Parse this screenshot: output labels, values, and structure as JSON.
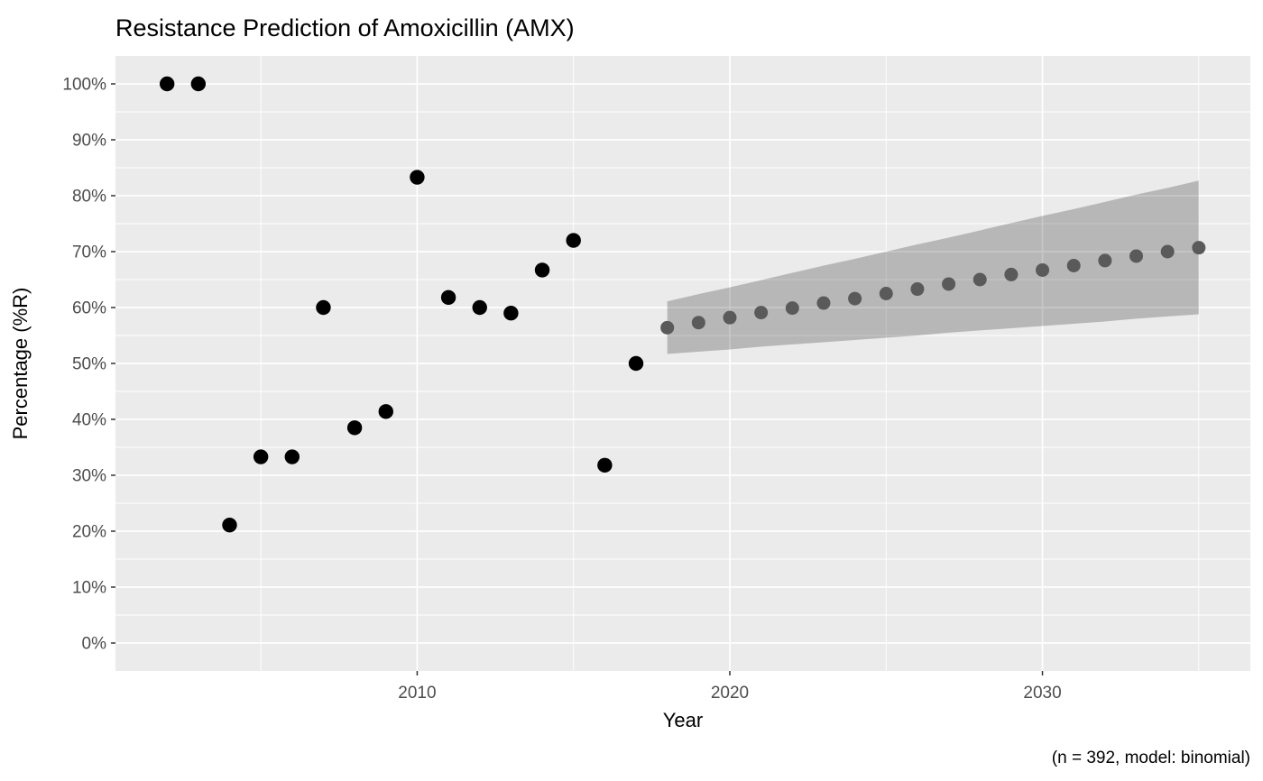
{
  "chart_data": {
    "type": "scatter",
    "title": "Resistance Prediction of Amoxicillin (AMX)",
    "xlabel": "Year",
    "ylabel": "Percentage (%R)",
    "caption": "(n = 392, model: binomial)",
    "grid": true,
    "legend_position": "none",
    "xlim": [
      2000.35,
      2036.65
    ],
    "ylim_percent": [
      -5,
      105
    ],
    "x_ticks": [
      {
        "value": 2010,
        "label": "2010"
      },
      {
        "value": 2020,
        "label": "2020"
      },
      {
        "value": 2030,
        "label": "2030"
      }
    ],
    "x_minor_ticks": [
      2005,
      2015,
      2025,
      2035
    ],
    "y_ticks": [
      {
        "value": 0,
        "label": "0%"
      },
      {
        "value": 10,
        "label": "10%"
      },
      {
        "value": 20,
        "label": "20%"
      },
      {
        "value": 30,
        "label": "30%"
      },
      {
        "value": 40,
        "label": "40%"
      },
      {
        "value": 50,
        "label": "50%"
      },
      {
        "value": 60,
        "label": "60%"
      },
      {
        "value": 70,
        "label": "70%"
      },
      {
        "value": 80,
        "label": "80%"
      },
      {
        "value": 90,
        "label": "90%"
      },
      {
        "value": 100,
        "label": "100%"
      }
    ],
    "y_minor_ticks": [
      5,
      15,
      25,
      35,
      45,
      55,
      65,
      75,
      85,
      95
    ],
    "series": [
      {
        "name": "observed",
        "point_color": "#000000",
        "point_radius": 8.2,
        "x": [
          2002,
          2003,
          2004,
          2005,
          2006,
          2007,
          2008,
          2009,
          2010,
          2011,
          2012,
          2013,
          2014,
          2015,
          2016,
          2017
        ],
        "y": [
          100,
          100,
          21.1,
          33.3,
          33.3,
          60.0,
          38.5,
          41.4,
          83.3,
          61.8,
          60.0,
          59.0,
          66.7,
          72.0,
          31.8,
          50.0
        ]
      },
      {
        "name": "predicted",
        "point_color": "#5a5a5a",
        "point_radius": 7.5,
        "x": [
          2018,
          2019,
          2020,
          2021,
          2022,
          2023,
          2024,
          2025,
          2026,
          2027,
          2028,
          2029,
          2030,
          2031,
          2032,
          2033,
          2034,
          2035
        ],
        "y": [
          56.4,
          57.3,
          58.2,
          59.1,
          59.9,
          60.8,
          61.6,
          62.5,
          63.3,
          64.2,
          65.0,
          65.9,
          66.7,
          67.5,
          68.4,
          69.2,
          70.0,
          70.7
        ]
      }
    ],
    "ribbon": {
      "name": "confidence-interval",
      "fill": "rgba(0,0,0,0.22)",
      "x": [
        2018,
        2019,
        2020,
        2021,
        2022,
        2023,
        2024,
        2025,
        2026,
        2027,
        2028,
        2029,
        2030,
        2031,
        2032,
        2033,
        2034,
        2035
      ],
      "lower": [
        51.7,
        52.1,
        52.5,
        53.0,
        53.4,
        53.8,
        54.2,
        54.6,
        55.0,
        55.5,
        55.9,
        56.3,
        56.7,
        57.1,
        57.5,
        58.0,
        58.4,
        58.8
      ],
      "upper": [
        61.1,
        62.4,
        63.6,
        64.9,
        66.2,
        67.5,
        68.7,
        70.0,
        71.3,
        72.5,
        73.8,
        75.1,
        76.4,
        77.6,
        78.9,
        80.2,
        81.4,
        82.7
      ]
    },
    "colors": {
      "panel_background": "#ebebeb",
      "gridline": "#ffffff",
      "axis_tick": "#333333",
      "tick_label": "#4d4d4d",
      "text": "#000000"
    }
  }
}
